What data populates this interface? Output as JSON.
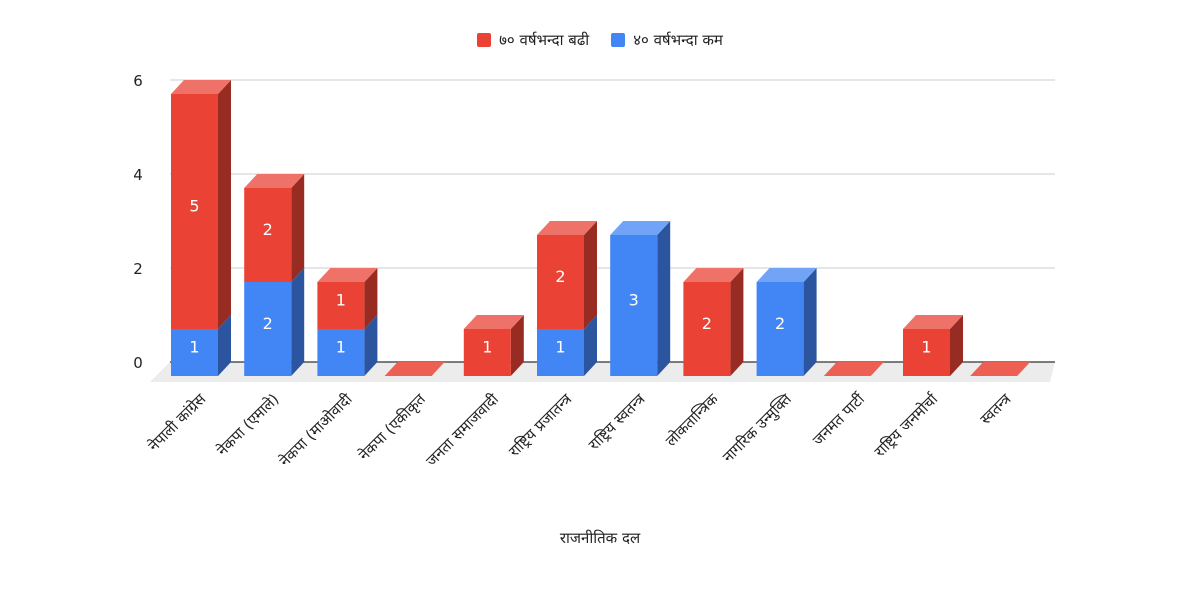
{
  "chart_data": {
    "type": "bar",
    "stacked": true,
    "three_d": true,
    "categories": [
      "नेपाली कांग्रेस",
      "नेकपा (एमाले)",
      "नेकपा (माओवादी",
      "नेकपा (एकीकृत",
      "जनता समाजवादी",
      "राष्ट्रिय प्रजातन्त्र",
      "राष्ट्रिय स्वतन्त्र",
      "लोकतान्त्रिक",
      "नागरिक उन्मुक्ति",
      "जनमत पार्टी",
      "राष्ट्रिय जनमोर्चा",
      "स्वतन्त्र"
    ],
    "series": [
      {
        "name": "४० वर्षभन्दा कम",
        "color": "#4285f4",
        "values": [
          1,
          2,
          1,
          0,
          0,
          1,
          3,
          0,
          2,
          0,
          0,
          0
        ]
      },
      {
        "name": "७० वर्षभन्दा बढी",
        "color": "#ea4335",
        "values": [
          5,
          2,
          1,
          0,
          1,
          2,
          0,
          2,
          0,
          0,
          1,
          0
        ]
      }
    ],
    "legend_order": [
      1,
      0
    ],
    "legend_position": "top",
    "xlabel": "राजनीतिक दल",
    "ylabel": "",
    "ylim": [
      0,
      6
    ],
    "yticks": [
      "0",
      "2",
      "4",
      "6"
    ],
    "grid": true
  }
}
